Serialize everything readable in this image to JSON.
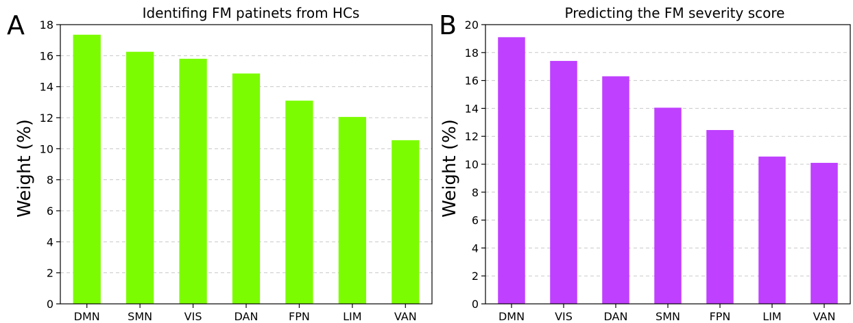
{
  "chart_data": [
    {
      "type": "bar",
      "panel_label": "A",
      "title": "Identifing FM patinets from HCs",
      "ylabel": "Weight (%)",
      "xlabel": "",
      "categories": [
        "DMN",
        "SMN",
        "VIS",
        "DAN",
        "FPN",
        "LIM",
        "VAN"
      ],
      "values": [
        17.35,
        16.25,
        15.8,
        14.85,
        13.1,
        12.05,
        10.55
      ],
      "ylim": [
        0,
        18
      ],
      "yticks": [
        0,
        2,
        4,
        6,
        8,
        10,
        12,
        14,
        16,
        18
      ],
      "grid": "y-dashed",
      "bar_color": "#7cfc00"
    },
    {
      "type": "bar",
      "panel_label": "B",
      "title": "Predicting the FM severity score",
      "ylabel": "Weight (%)",
      "xlabel": "",
      "categories": [
        "DMN",
        "VIS",
        "DAN",
        "SMN",
        "FPN",
        "LIM",
        "VAN"
      ],
      "values": [
        19.1,
        17.4,
        16.3,
        14.05,
        12.45,
        10.55,
        10.1
      ],
      "ylim": [
        0,
        20
      ],
      "yticks": [
        0,
        2,
        4,
        6,
        8,
        10,
        12,
        14,
        16,
        18,
        20
      ],
      "grid": "y-dashed",
      "bar_color": "#bf40ff"
    }
  ]
}
